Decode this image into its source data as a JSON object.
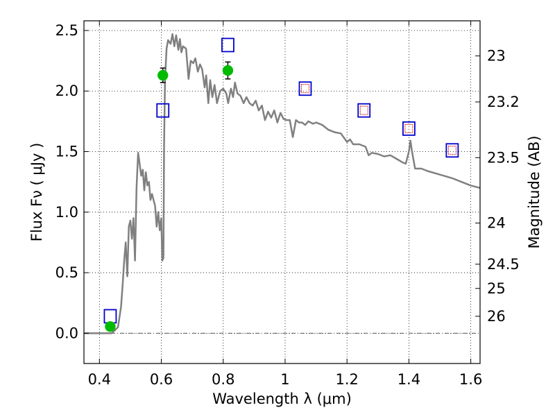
{
  "chart_data": {
    "type": "scatter",
    "xlabel": "Wavelength  λ (μm)",
    "ylabel": "Flux  Fν  ( μJy )",
    "ylabel_right": "Magnitude (AB)",
    "xlim": [
      0.35,
      1.63
    ],
    "ylim": [
      -0.25,
      2.58
    ],
    "grid": true,
    "x_ticks": [
      0.4,
      0.6,
      0.8,
      1.0,
      1.2,
      1.4,
      1.6
    ],
    "x_tick_labels": [
      "0.4",
      "0.6",
      "0.8",
      "1",
      "1.2",
      "1.4",
      "1.6"
    ],
    "y_ticks": [
      0.0,
      0.5,
      1.0,
      1.5,
      2.0,
      2.5
    ],
    "y_tick_labels": [
      "0.0",
      "0.5",
      "1.0",
      "1.5",
      "2.0",
      "2.5"
    ],
    "magnitude_ticks": [
      {
        "label": "23",
        "flux": 2.29
      },
      {
        "label": "23.2",
        "flux": 1.91
      },
      {
        "label": "23.5",
        "flux": 1.45
      },
      {
        "label": "24",
        "flux": 0.91
      },
      {
        "label": "24.5",
        "flux": 0.57
      },
      {
        "label": "25",
        "flux": 0.37
      },
      {
        "label": "26",
        "flux": 0.14
      }
    ],
    "colors": {
      "model": "#808080",
      "observed": "#00bb00",
      "model_photometry": "#0000cc",
      "synthetic": "#cc0000",
      "zero_line": "#404040"
    },
    "series": [
      {
        "type": "line",
        "points": [
          [
            0.35,
            0.0
          ],
          [
            0.44,
            0.0
          ],
          [
            0.46,
            0.05
          ],
          [
            0.47,
            0.22
          ],
          [
            0.475,
            0.4
          ],
          [
            0.48,
            0.6
          ],
          [
            0.485,
            0.75
          ],
          [
            0.49,
            0.47
          ],
          [
            0.495,
            0.88
          ],
          [
            0.5,
            0.93
          ],
          [
            0.505,
            0.78
          ],
          [
            0.51,
            0.95
          ],
          [
            0.515,
            0.6
          ],
          [
            0.52,
            1.2
          ],
          [
            0.525,
            1.49
          ],
          [
            0.53,
            1.4
          ],
          [
            0.535,
            1.3
          ],
          [
            0.54,
            1.35
          ],
          [
            0.545,
            1.18
          ],
          [
            0.55,
            1.33
          ],
          [
            0.555,
            1.22
          ],
          [
            0.56,
            1.25
          ],
          [
            0.565,
            1.1
          ],
          [
            0.57,
            1.15
          ],
          [
            0.58,
            1.05
          ],
          [
            0.585,
            0.88
          ],
          [
            0.59,
            1.0
          ],
          [
            0.595,
            0.85
          ],
          [
            0.6,
            0.95
          ],
          [
            0.603,
            0.6
          ],
          [
            0.607,
            0.62
          ],
          [
            0.609,
            1.55
          ],
          [
            0.612,
            2.1
          ],
          [
            0.617,
            2.35
          ],
          [
            0.622,
            2.42
          ],
          [
            0.63,
            2.39
          ],
          [
            0.636,
            2.47
          ],
          [
            0.642,
            2.37
          ],
          [
            0.648,
            2.46
          ],
          [
            0.655,
            2.34
          ],
          [
            0.66,
            2.43
          ],
          [
            0.665,
            2.32
          ],
          [
            0.67,
            2.37
          ],
          [
            0.68,
            2.35
          ],
          [
            0.688,
            2.1
          ],
          [
            0.695,
            2.25
          ],
          [
            0.703,
            2.23
          ],
          [
            0.71,
            2.27
          ],
          [
            0.718,
            2.16
          ],
          [
            0.725,
            2.22
          ],
          [
            0.732,
            2.18
          ],
          [
            0.74,
            2.03
          ],
          [
            0.745,
            2.13
          ],
          [
            0.752,
            1.9
          ],
          [
            0.758,
            2.09
          ],
          [
            0.765,
            1.95
          ],
          [
            0.772,
            2.05
          ],
          [
            0.78,
            1.9
          ],
          [
            0.79,
            2.0
          ],
          [
            0.8,
            2.02
          ],
          [
            0.81,
            1.98
          ],
          [
            0.816,
            1.9
          ],
          [
            0.825,
            2.02
          ],
          [
            0.832,
            1.95
          ],
          [
            0.838,
            2.07
          ],
          [
            0.846,
            1.98
          ],
          [
            0.856,
            1.96
          ],
          [
            0.866,
            1.9
          ],
          [
            0.875,
            1.95
          ],
          [
            0.885,
            1.9
          ],
          [
            0.895,
            1.88
          ],
          [
            0.905,
            1.92
          ],
          [
            0.915,
            1.84
          ],
          [
            0.925,
            1.88
          ],
          [
            0.935,
            1.76
          ],
          [
            0.945,
            1.83
          ],
          [
            0.955,
            1.78
          ],
          [
            0.965,
            1.84
          ],
          [
            0.975,
            1.74
          ],
          [
            0.985,
            1.82
          ],
          [
            0.995,
            1.77
          ],
          [
            1.005,
            1.76
          ],
          [
            1.015,
            1.76
          ],
          [
            1.025,
            1.62
          ],
          [
            1.035,
            1.76
          ],
          [
            1.045,
            1.74
          ],
          [
            1.055,
            1.74
          ],
          [
            1.065,
            1.72
          ],
          [
            1.075,
            1.75
          ],
          [
            1.09,
            1.73
          ],
          [
            1.1,
            1.74
          ],
          [
            1.12,
            1.72
          ],
          [
            1.14,
            1.68
          ],
          [
            1.16,
            1.66
          ],
          [
            1.18,
            1.65
          ],
          [
            1.2,
            1.58
          ],
          [
            1.21,
            1.6
          ],
          [
            1.22,
            1.56
          ],
          [
            1.24,
            1.56
          ],
          [
            1.26,
            1.54
          ],
          [
            1.27,
            1.47
          ],
          [
            1.28,
            1.49
          ],
          [
            1.3,
            1.48
          ],
          [
            1.32,
            1.46
          ],
          [
            1.34,
            1.47
          ],
          [
            1.36,
            1.44
          ],
          [
            1.38,
            1.41
          ],
          [
            1.39,
            1.4
          ],
          [
            1.4,
            1.5
          ],
          [
            1.405,
            1.59
          ],
          [
            1.41,
            1.5
          ],
          [
            1.42,
            1.36
          ],
          [
            1.44,
            1.36
          ],
          [
            1.46,
            1.34
          ],
          [
            1.5,
            1.31
          ],
          [
            1.54,
            1.28
          ],
          [
            1.57,
            1.25
          ],
          [
            1.6,
            1.22
          ],
          [
            1.63,
            1.2
          ]
        ]
      },
      {
        "type": "errorbar",
        "points": [
          {
            "x": 0.435,
            "y": 0.055,
            "err": 0.02
          },
          {
            "x": 0.605,
            "y": 2.13,
            "err": 0.06
          },
          {
            "x": 0.815,
            "y": 2.17,
            "err": 0.07
          }
        ]
      },
      {
        "type": "open_square",
        "points": [
          {
            "x": 0.435,
            "y": 0.14
          },
          {
            "x": 0.605,
            "y": 1.84
          },
          {
            "x": 0.815,
            "y": 2.38
          },
          {
            "x": 1.065,
            "y": 2.02
          },
          {
            "x": 1.255,
            "y": 1.84
          },
          {
            "x": 1.4,
            "y": 1.69
          },
          {
            "x": 1.54,
            "y": 1.51
          }
        ]
      },
      {
        "type": "open_square",
        "points": [
          {
            "x": 1.065,
            "y": 2.02
          },
          {
            "x": 1.255,
            "y": 1.84
          },
          {
            "x": 1.4,
            "y": 1.69
          },
          {
            "x": 1.54,
            "y": 1.51
          }
        ]
      }
    ]
  }
}
